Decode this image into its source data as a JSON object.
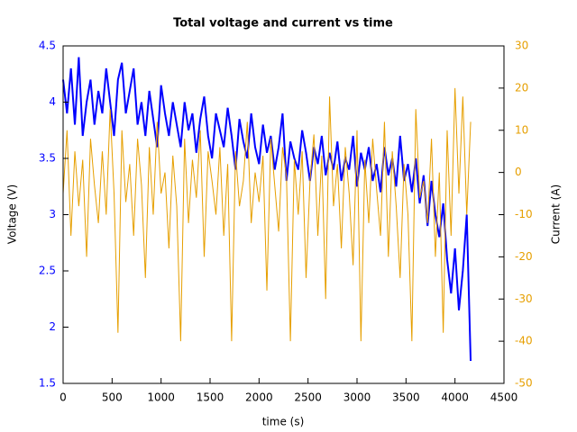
{
  "chart_data": {
    "type": "line",
    "title": "Total voltage and current vs time",
    "x_label": "time (s)",
    "y_label": "Voltage (V)",
    "y2_label": "Current (A)",
    "x": [
      0,
      40,
      80,
      120,
      160,
      200,
      240,
      280,
      320,
      360,
      400,
      440,
      480,
      520,
      560,
      600,
      640,
      680,
      720,
      760,
      800,
      840,
      880,
      920,
      960,
      1000,
      1040,
      1080,
      1120,
      1160,
      1200,
      1240,
      1280,
      1320,
      1360,
      1400,
      1440,
      1480,
      1520,
      1560,
      1600,
      1640,
      1680,
      1720,
      1760,
      1800,
      1840,
      1880,
      1920,
      1960,
      2000,
      2040,
      2080,
      2120,
      2160,
      2200,
      2240,
      2280,
      2320,
      2360,
      2400,
      2440,
      2480,
      2520,
      2560,
      2600,
      2640,
      2680,
      2720,
      2760,
      2800,
      2840,
      2880,
      2920,
      2960,
      3000,
      3040,
      3080,
      3120,
      3160,
      3200,
      3240,
      3280,
      3320,
      3360,
      3400,
      3440,
      3480,
      3520,
      3560,
      3600,
      3640,
      3680,
      3720,
      3760,
      3800,
      3840,
      3880,
      3920,
      3960,
      4000,
      4040,
      4080,
      4120,
      4160
    ],
    "series": [
      {
        "name": "Voltage",
        "color": "#0000ff",
        "axis": "y",
        "values": [
          4.2,
          3.9,
          4.3,
          3.8,
          4.4,
          3.7,
          4.0,
          4.2,
          3.8,
          4.1,
          3.9,
          4.3,
          4.0,
          3.7,
          4.2,
          4.35,
          3.9,
          4.1,
          4.3,
          3.8,
          4.0,
          3.7,
          4.1,
          3.85,
          3.6,
          4.15,
          3.9,
          3.7,
          4.0,
          3.8,
          3.6,
          4.0,
          3.75,
          3.9,
          3.55,
          3.85,
          4.05,
          3.7,
          3.5,
          3.9,
          3.75,
          3.6,
          3.95,
          3.7,
          3.4,
          3.85,
          3.65,
          3.5,
          3.9,
          3.6,
          3.45,
          3.8,
          3.55,
          3.7,
          3.4,
          3.6,
          3.9,
          3.3,
          3.65,
          3.5,
          3.4,
          3.75,
          3.55,
          3.3,
          3.6,
          3.45,
          3.7,
          3.35,
          3.55,
          3.4,
          3.65,
          3.3,
          3.5,
          3.4,
          3.7,
          3.25,
          3.55,
          3.4,
          3.6,
          3.3,
          3.45,
          3.2,
          3.6,
          3.35,
          3.5,
          3.25,
          3.7,
          3.3,
          3.45,
          3.2,
          3.5,
          3.1,
          3.35,
          2.9,
          3.3,
          3.0,
          2.8,
          3.1,
          2.6,
          2.3,
          2.7,
          2.15,
          2.5,
          3.0,
          1.7
        ]
      },
      {
        "name": "Current",
        "color": "#e69f00",
        "axis": "y2",
        "values": [
          -5,
          10,
          -15,
          5,
          -8,
          3,
          -20,
          8,
          -3,
          -12,
          5,
          -10,
          15,
          -5,
          -38,
          10,
          -7,
          2,
          -15,
          8,
          -3,
          -25,
          6,
          -10,
          12,
          -5,
          0,
          -18,
          4,
          -8,
          -40,
          8,
          -12,
          3,
          -6,
          10,
          -20,
          5,
          -2,
          -10,
          6,
          -15,
          2,
          -40,
          5,
          -8,
          -2,
          12,
          -12,
          0,
          -7,
          4,
          -28,
          8,
          -3,
          -14,
          6,
          -1,
          -40,
          3,
          -10,
          5,
          -25,
          -2,
          9,
          -15,
          4,
          -30,
          18,
          -8,
          2,
          -18,
          6,
          -5,
          -22,
          10,
          -40,
          3,
          -12,
          8,
          -4,
          -15,
          12,
          -20,
          5,
          -8,
          -25,
          2,
          -10,
          -40,
          15,
          -6,
          -2,
          -12,
          8,
          -20,
          0,
          -38,
          10,
          -15,
          20,
          -5,
          18,
          -10,
          12
        ]
      }
    ],
    "xlim": [
      0,
      4500
    ],
    "xticks": [
      0,
      500,
      1000,
      1500,
      2000,
      2500,
      3000,
      3500,
      4000,
      4500
    ],
    "ylim": [
      1.5,
      4.5
    ],
    "yticks": [
      1.5,
      2,
      2.5,
      3,
      3.5,
      4,
      4.5
    ],
    "y2lim": [
      -50,
      30
    ],
    "y2ticks": [
      -50,
      -40,
      -30,
      -20,
      -10,
      0,
      10,
      20,
      30
    ]
  }
}
